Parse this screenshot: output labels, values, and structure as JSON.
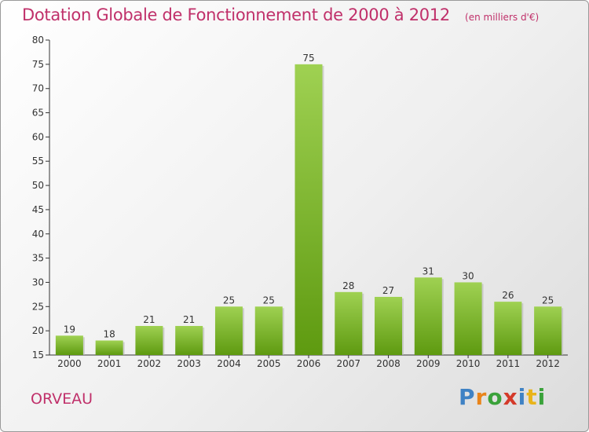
{
  "header": {
    "title": "Dotation Globale de Fonctionnement de 2000 à 2012",
    "unit": "(en milliers d'€)"
  },
  "footer": {
    "commune": "ORVEAU",
    "logo": "Proxiti"
  },
  "colors": {
    "title": "#c0306a",
    "bar_top": "#9fd152",
    "bar_bottom": "#5e9a10",
    "axis": "#333333"
  },
  "chart_data": {
    "type": "bar",
    "title": "Dotation Globale de Fonctionnement de 2000 à 2012",
    "categories": [
      "2000",
      "2001",
      "2002",
      "2003",
      "2004",
      "2005",
      "2006",
      "2007",
      "2008",
      "2009",
      "2010",
      "2011",
      "2012"
    ],
    "values": [
      19,
      18,
      21,
      21,
      25,
      25,
      75,
      28,
      27,
      31,
      30,
      26,
      25
    ],
    "ylim": [
      15,
      80
    ],
    "yticks": [
      15,
      20,
      25,
      30,
      35,
      40,
      45,
      50,
      55,
      60,
      65,
      70,
      75,
      80
    ],
    "grid": false,
    "xlabel": "",
    "ylabel": ""
  }
}
